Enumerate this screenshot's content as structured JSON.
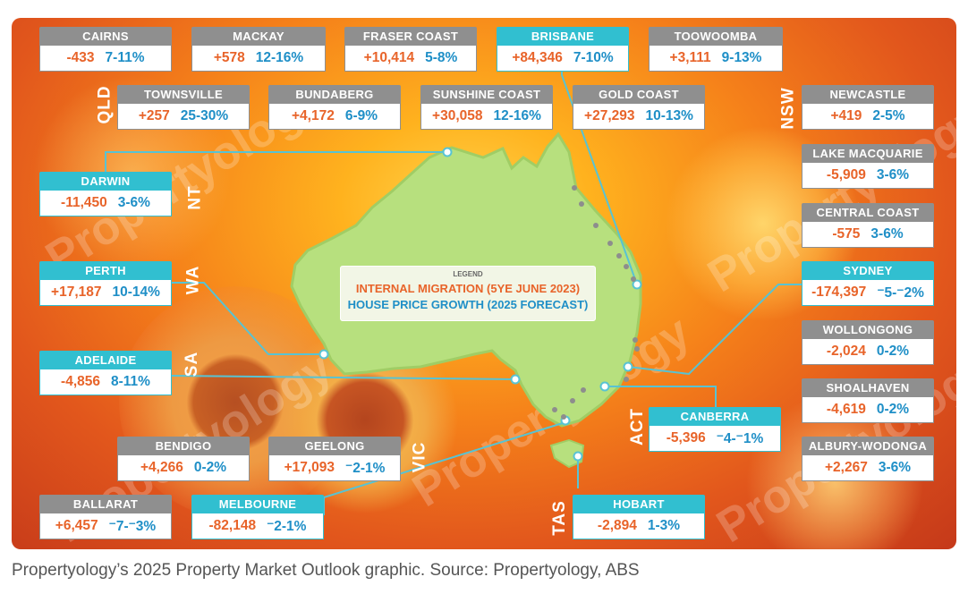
{
  "legend": {
    "title": "LEGEND",
    "line1": "INTERNAL MIGRATION (5YE JUNE 2023)",
    "line2": "HOUSE PRICE GROWTH (2025 FORECAST)"
  },
  "colors": {
    "migration": "#e8642a",
    "growth": "#1f8fc7",
    "capital_header": "#31bfd0",
    "regional_header": "#8f8f8f",
    "map_fill": "#b7e07e"
  },
  "states": {
    "qld": "QLD",
    "nsw": "NSW",
    "nt": "NT",
    "wa": "WA",
    "sa": "SA",
    "vic": "VIC",
    "act": "ACT",
    "tas": "TAS"
  },
  "watermark": "Propertyology",
  "locations": [
    {
      "name": "CAIRNS",
      "migration": "-433",
      "growth": "7-11%",
      "capital": false
    },
    {
      "name": "MACKAY",
      "migration": "+578",
      "growth": "12-16%",
      "capital": false
    },
    {
      "name": "FRASER COAST",
      "migration": "+10,414",
      "growth": "5-8%",
      "capital": false
    },
    {
      "name": "BRISBANE",
      "migration": "+84,346",
      "growth": "7-10%",
      "capital": true
    },
    {
      "name": "TOOWOOMBA",
      "migration": "+3,111",
      "growth": "9-13%",
      "capital": false
    },
    {
      "name": "TOWNSVILLE",
      "migration": "+257",
      "growth": "25-30%",
      "capital": false
    },
    {
      "name": "BUNDABERG",
      "migration": "+4,172",
      "growth": "6-9%",
      "capital": false
    },
    {
      "name": "SUNSHINE COAST",
      "migration": "+30,058",
      "growth": "12-16%",
      "capital": false
    },
    {
      "name": "GOLD COAST",
      "migration": "+27,293",
      "growth": "10-13%",
      "capital": false
    },
    {
      "name": "NEWCASTLE",
      "migration": "+419",
      "growth": "2-5%",
      "capital": false
    },
    {
      "name": "LAKE MACQUARIE",
      "migration": "-5,909",
      "growth": "3-6%",
      "capital": false
    },
    {
      "name": "DARWIN",
      "migration": "-11,450",
      "growth": "3-6%",
      "capital": true
    },
    {
      "name": "CENTRAL COAST",
      "migration": "-575",
      "growth": "3-6%",
      "capital": false
    },
    {
      "name": "PERTH",
      "migration": "+17,187",
      "growth": "10-14%",
      "capital": true
    },
    {
      "name": "SYDNEY",
      "migration": "-174,397",
      "growth": "⁻5-⁻2%",
      "capital": true
    },
    {
      "name": "WOLLONGONG",
      "migration": "-2,024",
      "growth": "0-2%",
      "capital": false
    },
    {
      "name": "ADELAIDE",
      "migration": "-4,856",
      "growth": "8-11%",
      "capital": true
    },
    {
      "name": "SHOALHAVEN",
      "migration": "-4,619",
      "growth": "0-2%",
      "capital": false
    },
    {
      "name": "CANBERRA",
      "migration": "-5,396",
      "growth": "⁻4-⁻1%",
      "capital": true
    },
    {
      "name": "BENDIGO",
      "migration": "+4,266",
      "growth": "0-2%",
      "capital": false
    },
    {
      "name": "GEELONG",
      "migration": "+17,093",
      "growth": "⁻2-1%",
      "capital": false
    },
    {
      "name": "ALBURY-WODONGA",
      "migration": "+2,267",
      "growth": "3-6%",
      "capital": false
    },
    {
      "name": "BALLARAT",
      "migration": "+6,457",
      "growth": "⁻7-⁻3%",
      "capital": false
    },
    {
      "name": "MELBOURNE",
      "migration": "-82,148",
      "growth": "⁻2-1%",
      "capital": true
    },
    {
      "name": "HOBART",
      "migration": "-2,894",
      "growth": "1-3%",
      "capital": true
    }
  ],
  "caption": "Propertyology’s 2025 Property Market Outlook graphic. Source: Propertyology, ABS"
}
